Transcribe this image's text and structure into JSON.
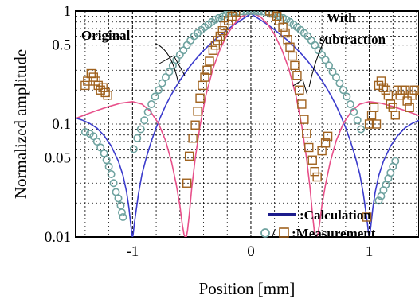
{
  "chart_data": {
    "type": "line",
    "xlabel": "Position [mm]",
    "ylabel": "Normalized amplitude",
    "xlim": [
      -1.48,
      1.42
    ],
    "ylim": [
      0.01,
      1
    ],
    "y_scale": "log",
    "grid": true,
    "x_ticks": [
      {
        "value": -1,
        "label": "-1"
      },
      {
        "value": 0,
        "label": "0"
      },
      {
        "value": 1,
        "label": "1"
      }
    ],
    "y_ticks": [
      {
        "value": 1,
        "label": "1"
      },
      {
        "value": 0.5,
        "label": "0.5"
      },
      {
        "value": 0.1,
        "label": "0.1"
      },
      {
        "value": 0.05,
        "label": "0.05"
      },
      {
        "value": 0.01,
        "label": "0.01"
      }
    ],
    "annotations": [
      {
        "text": "Original"
      },
      {
        "text": "With"
      },
      {
        "text": "subtraction"
      }
    ],
    "legend": {
      "placement": "bottom-right",
      "items": [
        {
          "marker": "line",
          "text": ":Calculation"
        },
        {
          "marker": "circle-square",
          "symbol": "○/□",
          "text": ":Measurement"
        }
      ]
    },
    "colors": {
      "calculation_original": "#3b3bcc",
      "calculation_subtraction": "#e8508a",
      "circle_marker": "#6fa3a0",
      "square_marker": "#a0621e",
      "legend_line": "#1c1c8c"
    },
    "series": [
      {
        "style": "line",
        "color": "#3b3bcc",
        "x": [
          -1.48,
          -1.42,
          -1.36,
          -1.3,
          -1.24,
          -1.18,
          -1.12,
          -1.08,
          -1.05,
          -1.03,
          -1.015,
          -1.005,
          -1.0,
          -0.995,
          -0.985,
          -0.97,
          -0.95,
          -0.92,
          -0.88,
          -0.84,
          -0.8,
          -0.76,
          -0.72,
          -0.68,
          -0.64,
          -0.6,
          -0.56,
          -0.52,
          -0.48,
          -0.44,
          -0.4,
          -0.35,
          -0.3,
          -0.25,
          -0.2,
          -0.15,
          -0.1,
          -0.05,
          0,
          0.05,
          0.1,
          0.15,
          0.2,
          0.25,
          0.3,
          0.35,
          0.4,
          0.44,
          0.48,
          0.52,
          0.56,
          0.6,
          0.64,
          0.68,
          0.72,
          0.76,
          0.8,
          0.84,
          0.88,
          0.92,
          0.95,
          0.97,
          0.985,
          0.995,
          1.0,
          1.005,
          1.015,
          1.03,
          1.05,
          1.08,
          1.12,
          1.18,
          1.24,
          1.3,
          1.36,
          1.42
        ],
        "y": [
          0.113,
          0.108,
          0.101,
          0.092,
          0.079,
          0.064,
          0.047,
          0.035,
          0.025,
          0.018,
          0.013,
          0.0105,
          0.01,
          0.0105,
          0.013,
          0.017,
          0.024,
          0.036,
          0.052,
          0.071,
          0.093,
          0.118,
          0.146,
          0.176,
          0.208,
          0.243,
          0.28,
          0.319,
          0.36,
          0.403,
          0.448,
          0.504,
          0.562,
          0.619,
          0.684,
          0.747,
          0.81,
          0.875,
          0.945,
          0.875,
          0.81,
          0.747,
          0.684,
          0.619,
          0.562,
          0.504,
          0.448,
          0.403,
          0.36,
          0.319,
          0.28,
          0.243,
          0.208,
          0.176,
          0.146,
          0.118,
          0.093,
          0.071,
          0.052,
          0.036,
          0.024,
          0.017,
          0.013,
          0.0105,
          0.01,
          0.0105,
          0.013,
          0.018,
          0.025,
          0.035,
          0.047,
          0.064,
          0.079,
          0.092,
          0.101,
          0.108
        ]
      },
      {
        "style": "line",
        "color": "#e8508a",
        "x": [
          -1.48,
          -1.4,
          -1.3,
          -1.2,
          -1.1,
          -1.0,
          -0.92,
          -0.85,
          -0.78,
          -0.72,
          -0.67,
          -0.63,
          -0.6,
          -0.58,
          -0.565,
          -0.555,
          -0.55,
          -0.545,
          -0.535,
          -0.52,
          -0.5,
          -0.47,
          -0.43,
          -0.38,
          -0.32,
          -0.26,
          -0.2,
          -0.14,
          -0.08,
          0,
          0.08,
          0.14,
          0.2,
          0.26,
          0.32,
          0.38,
          0.43,
          0.47,
          0.5,
          0.52,
          0.535,
          0.545,
          0.55,
          0.555,
          0.565,
          0.58,
          0.6,
          0.63,
          0.67,
          0.72,
          0.78,
          0.85,
          0.92,
          1.0,
          1.1,
          1.2,
          1.3,
          1.42
        ],
        "y": [
          0.112,
          0.121,
          0.132,
          0.143,
          0.153,
          0.158,
          0.15,
          0.13,
          0.101,
          0.071,
          0.046,
          0.029,
          0.019,
          0.013,
          0.0105,
          0.01,
          0.01,
          0.01,
          0.0115,
          0.016,
          0.027,
          0.05,
          0.096,
          0.18,
          0.31,
          0.46,
          0.62,
          0.77,
          0.89,
          0.97,
          0.89,
          0.77,
          0.62,
          0.46,
          0.31,
          0.18,
          0.096,
          0.05,
          0.027,
          0.016,
          0.0115,
          0.01,
          0.01,
          0.01,
          0.0105,
          0.013,
          0.019,
          0.029,
          0.046,
          0.071,
          0.101,
          0.13,
          0.15,
          0.158,
          0.153,
          0.143,
          0.132,
          0.119
        ]
      },
      {
        "style": "circle",
        "color": "#6fa3a0",
        "x": [
          -1.4,
          -1.36,
          -1.33,
          -1.3,
          -1.27,
          -1.24,
          -1.22,
          -1.2,
          -1.18,
          -1.16,
          -1.14,
          -1.12,
          -1.1,
          -1.09,
          -1.08,
          -0.99,
          -0.96,
          -0.93,
          -0.9,
          -0.87,
          -0.84,
          -0.81,
          -0.78,
          -0.75,
          -0.72,
          -0.69,
          -0.66,
          -0.63,
          -0.6,
          -0.57,
          -0.54,
          -0.51,
          -0.48,
          -0.45,
          -0.42,
          -0.39,
          -0.36,
          -0.33,
          -0.3,
          -0.27,
          -0.24,
          -0.21,
          -0.18,
          -0.15,
          -0.12,
          -0.09,
          -0.06,
          -0.03,
          0,
          0.03,
          0.06,
          0.09,
          0.12,
          0.15,
          0.18,
          0.21,
          0.24,
          0.27,
          0.3,
          0.33,
          0.36,
          0.39,
          0.42,
          0.45,
          0.48,
          0.51,
          0.54,
          0.57,
          0.6,
          0.63,
          0.66,
          0.69,
          0.72,
          0.75,
          0.78,
          0.81,
          0.84,
          0.87,
          0.9,
          0.93,
          1.08,
          1.1,
          1.12,
          1.14,
          1.16,
          1.18,
          1.2,
          1.22
        ],
        "y": [
          0.085,
          0.082,
          0.078,
          0.07,
          0.062,
          0.055,
          0.048,
          0.042,
          0.036,
          0.03,
          0.025,
          0.022,
          0.019,
          0.0165,
          0.015,
          0.06,
          0.075,
          0.09,
          0.108,
          0.128,
          0.15,
          0.175,
          0.2,
          0.23,
          0.26,
          0.29,
          0.33,
          0.37,
          0.41,
          0.45,
          0.5,
          0.55,
          0.6,
          0.64,
          0.68,
          0.72,
          0.76,
          0.8,
          0.84,
          0.87,
          0.9,
          0.93,
          0.95,
          0.97,
          0.98,
          0.99,
          0.99,
          1.0,
          1.0,
          1.0,
          0.99,
          0.99,
          0.98,
          0.97,
          0.95,
          0.93,
          0.9,
          0.87,
          0.84,
          0.8,
          0.76,
          0.72,
          0.68,
          0.64,
          0.6,
          0.55,
          0.5,
          0.45,
          0.41,
          0.37,
          0.33,
          0.29,
          0.26,
          0.23,
          0.2,
          0.175,
          0.15,
          0.128,
          0.108,
          0.09,
          0.021,
          0.023,
          0.026,
          0.029,
          0.033,
          0.037,
          0.042,
          0.047
        ]
      },
      {
        "style": "square",
        "color": "#a0621e",
        "x": [
          -1.4,
          -1.38,
          -1.35,
          -1.33,
          -1.31,
          -1.29,
          -1.27,
          -1.25,
          -1.23,
          -1.21,
          -0.54,
          -0.52,
          -0.49,
          -0.47,
          -0.45,
          -0.43,
          -0.41,
          -0.39,
          -0.37,
          -0.35,
          -0.32,
          -0.3,
          -0.28,
          -0.26,
          -0.24,
          -0.22,
          -0.19,
          -0.16,
          -0.13,
          0.16,
          0.19,
          0.22,
          0.24,
          0.27,
          0.29,
          0.31,
          0.33,
          0.35,
          0.37,
          0.39,
          0.41,
          0.43,
          0.45,
          0.47,
          0.49,
          0.52,
          0.54,
          0.56,
          0.6,
          0.63,
          0.65,
          0.98,
          1.0,
          1.02,
          1.04,
          1.06,
          1.08,
          1.1,
          1.12,
          1.14,
          1.16,
          1.18,
          1.2,
          1.22,
          1.24,
          1.26,
          1.28,
          1.3,
          1.32,
          1.34,
          1.36,
          1.38,
          1.4
        ],
        "y": [
          0.22,
          0.24,
          0.28,
          0.26,
          0.24,
          0.22,
          0.2,
          0.21,
          0.19,
          0.18,
          0.03,
          0.052,
          0.075,
          0.098,
          0.13,
          0.17,
          0.22,
          0.26,
          0.3,
          0.36,
          0.45,
          0.5,
          0.55,
          0.6,
          0.67,
          0.74,
          0.82,
          0.9,
          0.98,
          1.0,
          0.96,
          0.9,
          0.82,
          0.72,
          0.64,
          0.56,
          0.48,
          0.4,
          0.33,
          0.27,
          0.2,
          0.15,
          0.11,
          0.082,
          0.062,
          0.048,
          0.038,
          0.034,
          0.058,
          0.068,
          0.078,
          0.015,
          0.1,
          0.12,
          0.14,
          0.1,
          0.22,
          0.24,
          0.21,
          0.2,
          0.18,
          0.15,
          0.14,
          0.12,
          0.2,
          0.18,
          0.2,
          0.2,
          0.16,
          0.14,
          0.18,
          0.2,
          0.2
        ]
      }
    ]
  }
}
